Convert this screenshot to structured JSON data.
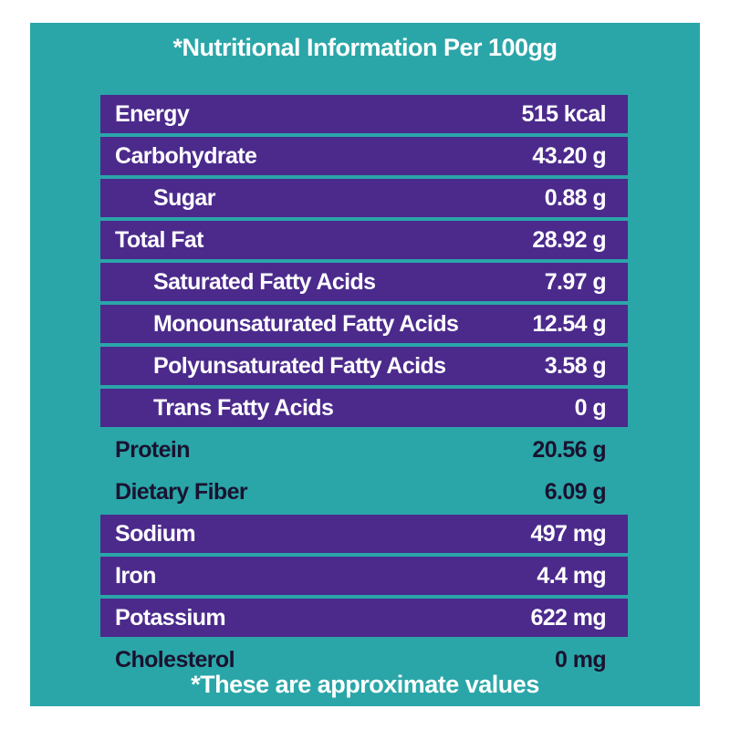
{
  "title": "*Nutritional Information Per 100gg",
  "footer": "*These are approximate values",
  "colors": {
    "panel": "#2aa6a8",
    "purple_row": "#4b2a8c",
    "teal_row": "#2aa6a8"
  },
  "rows": [
    {
      "name": "Energy",
      "value": "515 kcal",
      "style": "purple",
      "indent": false
    },
    {
      "name": "Carbohydrate",
      "value": "43.20 g",
      "style": "purple",
      "indent": false
    },
    {
      "name": "Sugar",
      "value": "0.88 g",
      "style": "purple",
      "indent": true
    },
    {
      "name": "Total Fat",
      "value": "28.92 g",
      "style": "purple",
      "indent": false
    },
    {
      "name": "Saturated Fatty Acids",
      "value": "7.97 g",
      "style": "purple",
      "indent": true
    },
    {
      "name": "Monounsaturated Fatty Acids",
      "value": "12.54 g",
      "style": "purple",
      "indent": true
    },
    {
      "name": "Polyunsaturated Fatty Acids",
      "value": "3.58 g",
      "style": "purple",
      "indent": true
    },
    {
      "name": "Trans Fatty Acids",
      "value": "0 g",
      "style": "purple",
      "indent": true
    },
    {
      "name": "Protein",
      "value": "20.56 g",
      "style": "teal",
      "indent": false
    },
    {
      "name": "Dietary Fiber",
      "value": "6.09 g",
      "style": "teal",
      "indent": false
    },
    {
      "name": "Sodium",
      "value": "497 mg",
      "style": "purple",
      "indent": false
    },
    {
      "name": "Iron",
      "value": "4.4 mg",
      "style": "purple",
      "indent": false
    },
    {
      "name": "Potassium",
      "value": "622 mg",
      "style": "purple",
      "indent": false
    },
    {
      "name": "Cholesterol",
      "value": "0 mg",
      "style": "teal",
      "indent": false
    }
  ]
}
